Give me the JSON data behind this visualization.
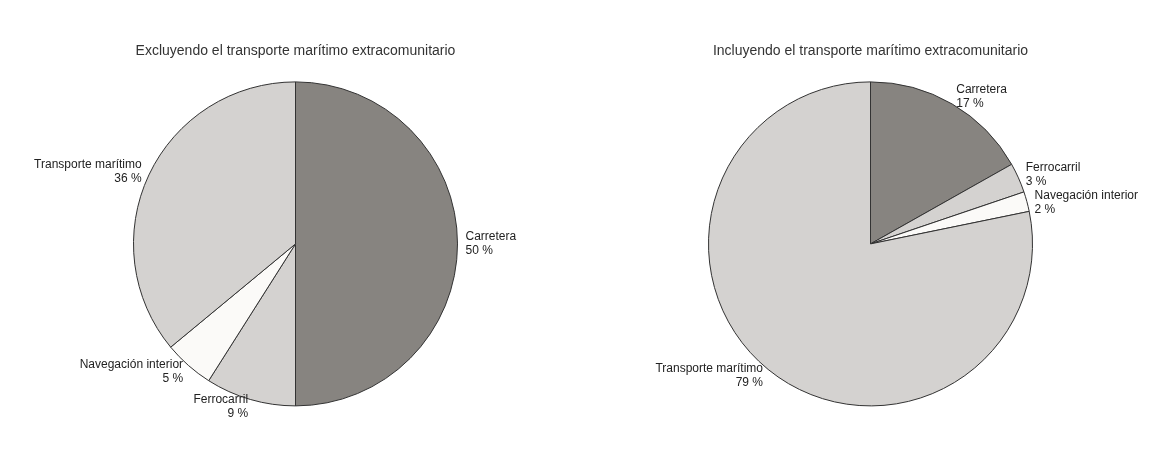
{
  "chart_data": [
    {
      "type": "pie",
      "title": "Excluyendo el transporte marítimo extracomunitario",
      "categories": [
        "Carretera",
        "Ferrocarril",
        "Navegación interior",
        "Transporte marítimo"
      ],
      "values": [
        50,
        9,
        5,
        36
      ],
      "value_labels": [
        "50 %",
        "9 %",
        "5 %",
        "36 %"
      ],
      "colors": [
        "#878480",
        "#d4d2d0",
        "#fbfaf8",
        "#d4d2d0"
      ],
      "legend": false
    },
    {
      "type": "pie",
      "title": "Incluyendo el transporte marítimo extracomunitario",
      "categories": [
        "Carretera",
        "Ferrocarril",
        "Navegación interior",
        "Transporte marítimo"
      ],
      "values": [
        17,
        3,
        2,
        79
      ],
      "value_labels": [
        "17 %",
        "3 %",
        "2 %",
        "79 %"
      ],
      "colors": [
        "#878480",
        "#d4d2d0",
        "#fbfaf8",
        "#d4d2d0"
      ],
      "legend": false
    }
  ]
}
